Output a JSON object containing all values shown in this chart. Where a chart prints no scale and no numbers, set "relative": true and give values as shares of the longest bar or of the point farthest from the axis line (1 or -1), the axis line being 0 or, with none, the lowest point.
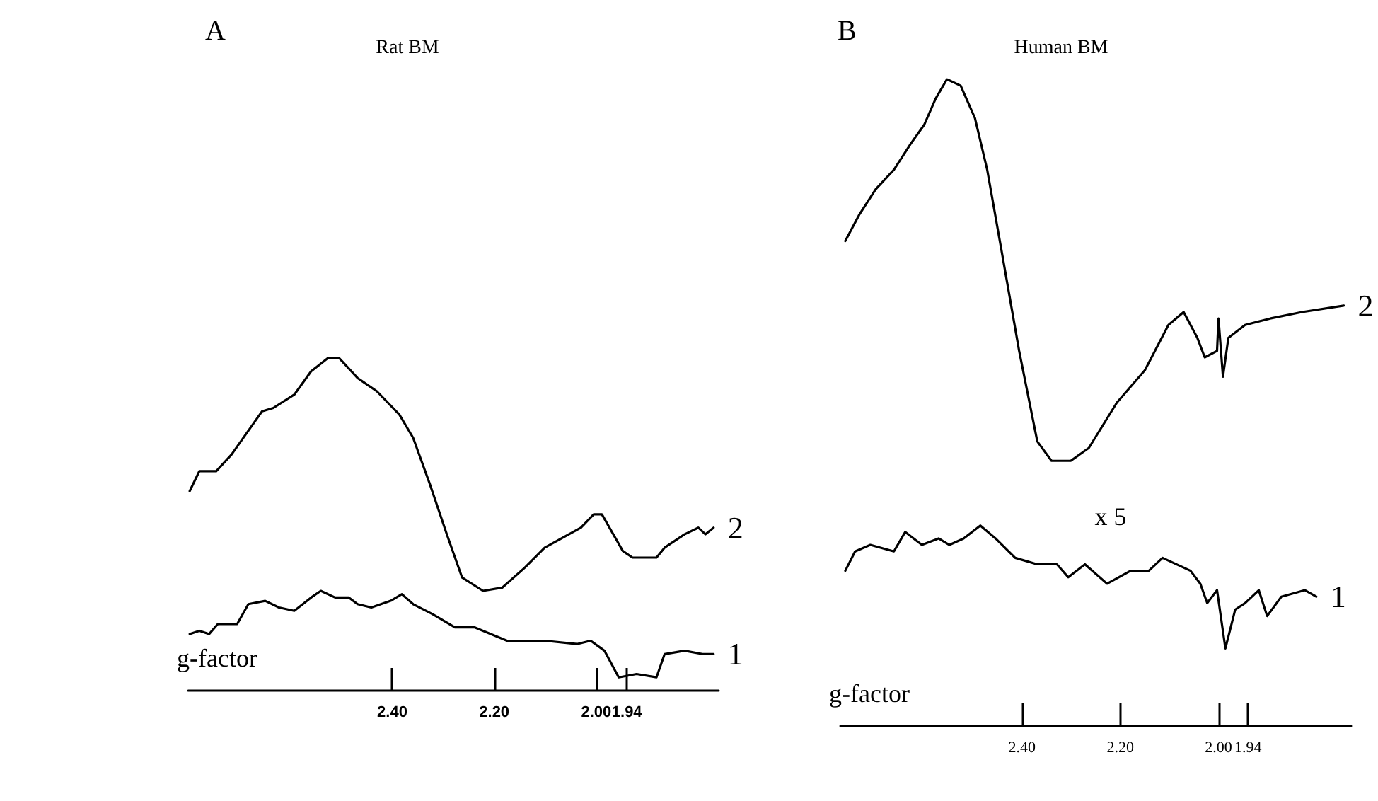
{
  "chart_data": [
    {
      "type": "line",
      "title": "Rat BM",
      "xlabel": "g-factor",
      "relative": true,
      "marker": "none",
      "line_style": "solid",
      "annotations": [
        "A"
      ],
      "xlim": [
        2.8,
        1.76
      ],
      "xticks": [
        {
          "value": 2.4,
          "label": "2.40"
        },
        {
          "value": 2.2,
          "label": "2.20"
        },
        {
          "value": 2.0,
          "label": "2.00"
        },
        1.94
      ],
      "series": [
        {
          "name": "2",
          "color": "#000000",
          "x": [
            2.797,
            2.778,
            2.745,
            2.715,
            2.655,
            2.633,
            2.592,
            2.559,
            2.526,
            2.504,
            2.468,
            2.43,
            2.386,
            2.359,
            2.326,
            2.293,
            2.263,
            2.222,
            2.184,
            2.14,
            2.101,
            2.03,
            2.005,
            1.989,
            1.948,
            1.929,
            1.882,
            1.866,
            1.827,
            1.8,
            1.786,
            1.77
          ],
          "values": [
            0.6,
            0.66,
            0.66,
            0.71,
            0.84,
            0.85,
            0.89,
            0.96,
            1.0,
            1.0,
            0.94,
            0.9,
            0.83,
            0.76,
            0.62,
            0.47,
            0.34,
            0.3,
            0.31,
            0.37,
            0.43,
            0.49,
            0.53,
            0.53,
            0.42,
            0.4,
            0.4,
            0.43,
            0.47,
            0.49,
            0.47,
            0.49
          ]
        },
        {
          "name": "1",
          "color": "#000000",
          "x": [
            2.797,
            2.778,
            2.759,
            2.742,
            2.704,
            2.682,
            2.649,
            2.622,
            2.592,
            2.559,
            2.54,
            2.512,
            2.485,
            2.468,
            2.441,
            2.403,
            2.381,
            2.359,
            2.321,
            2.277,
            2.238,
            2.175,
            2.101,
            2.038,
            2.011,
            1.984,
            1.956,
            1.921,
            1.882,
            1.866,
            1.827,
            1.792,
            1.77
          ],
          "values": [
            0.17,
            0.18,
            0.17,
            0.2,
            0.2,
            0.26,
            0.27,
            0.25,
            0.24,
            0.28,
            0.3,
            0.28,
            0.28,
            0.26,
            0.25,
            0.27,
            0.29,
            0.26,
            0.23,
            0.19,
            0.19,
            0.15,
            0.15,
            0.14,
            0.15,
            0.12,
            0.04,
            0.05,
            0.04,
            0.11,
            0.12,
            0.11,
            0.11
          ]
        }
      ]
    },
    {
      "type": "line",
      "title": "Human BM",
      "xlabel": "g-factor",
      "relative": true,
      "marker": "none",
      "line_style": "solid",
      "annotations": [
        "B",
        "x 5"
      ],
      "xlim": [
        2.77,
        1.73
      ],
      "xticks": [
        {
          "value": 2.4,
          "label": "2.40"
        },
        {
          "value": 2.2,
          "label": "2.20"
        },
        {
          "value": 2.0,
          "label": "2.00"
        },
        1.94
      ],
      "series": [
        {
          "name": "2",
          "color": "#000000",
          "x": [
            2.76,
            2.732,
            2.698,
            2.661,
            2.627,
            2.599,
            2.576,
            2.553,
            2.525,
            2.496,
            2.471,
            2.443,
            2.406,
            2.369,
            2.34,
            2.301,
            2.264,
            2.207,
            2.15,
            2.102,
            2.071,
            2.043,
            2.028,
            2.003,
            2.0,
            1.991,
            1.98,
            1.946,
            1.895,
            1.83,
            1.745
          ],
          "values": [
            0.75,
            0.79,
            0.83,
            0.86,
            0.9,
            0.93,
            0.97,
            1.0,
            0.99,
            0.94,
            0.86,
            0.74,
            0.58,
            0.44,
            0.41,
            0.41,
            0.43,
            0.5,
            0.55,
            0.62,
            0.64,
            0.6,
            0.57,
            0.58,
            0.63,
            0.54,
            0.6,
            0.62,
            0.63,
            0.64,
            0.65
          ]
        },
        {
          "name": "1",
          "color": "#000000",
          "x": [
            2.76,
            2.74,
            2.709,
            2.661,
            2.638,
            2.604,
            2.57,
            2.548,
            2.519,
            2.485,
            2.454,
            2.414,
            2.369,
            2.329,
            2.306,
            2.272,
            2.227,
            2.179,
            2.142,
            2.114,
            2.057,
            2.037,
            2.023,
            2.003,
            1.986,
            1.966,
            1.946,
            1.918,
            1.901,
            1.872,
            1.824,
            1.801
          ],
          "values": [
            0.24,
            0.27,
            0.28,
            0.27,
            0.3,
            0.28,
            0.29,
            0.28,
            0.29,
            0.31,
            0.29,
            0.26,
            0.25,
            0.25,
            0.23,
            0.25,
            0.22,
            0.24,
            0.24,
            0.26,
            0.24,
            0.22,
            0.19,
            0.21,
            0.12,
            0.18,
            0.19,
            0.21,
            0.17,
            0.2,
            0.21,
            0.2
          ]
        }
      ]
    }
  ]
}
